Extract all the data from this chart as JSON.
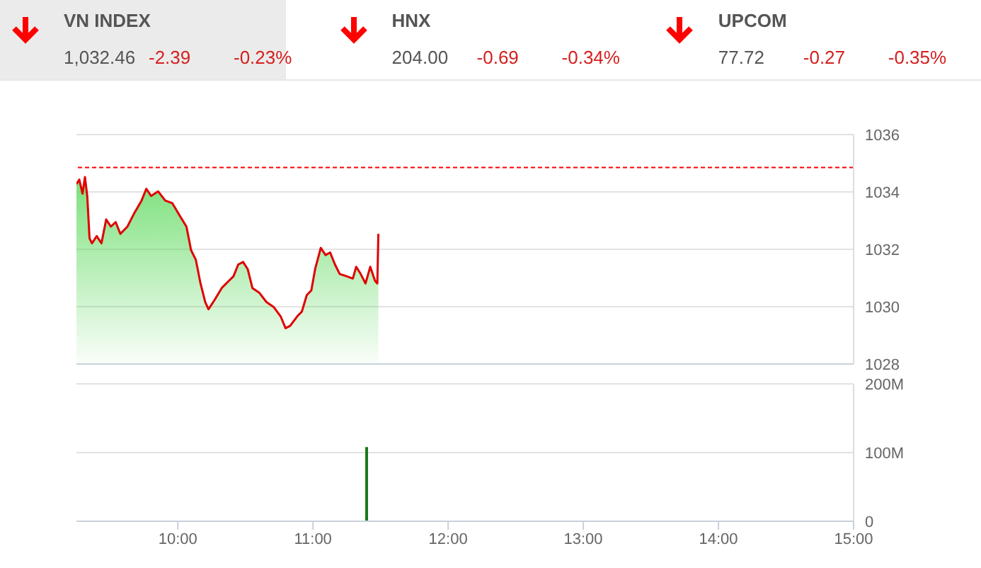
{
  "chart_data": [
    {
      "type": "other",
      "annotations": [
        "VN INDEX",
        "1,032.46",
        "-2.39",
        "-0.23%",
        "HNX",
        "204.00",
        "-0.69",
        "-0.34%",
        "UPCOM",
        "77.72",
        "-0.27",
        "-0.35%"
      ]
    },
    {
      "type": "area",
      "x": [
        9.25,
        9.271,
        9.295,
        9.313,
        9.33,
        9.347,
        9.365,
        9.4,
        9.435,
        9.47,
        9.505,
        9.54,
        9.575,
        9.627,
        9.68,
        9.732,
        9.767,
        9.802,
        9.854,
        9.907,
        9.959,
        10.011,
        10.064,
        10.098,
        10.133,
        10.168,
        10.203,
        10.227,
        10.273,
        10.325,
        10.378,
        10.412,
        10.447,
        10.483,
        10.517,
        10.552,
        10.604,
        10.656,
        10.709,
        10.761,
        10.797,
        10.831,
        10.883,
        10.918,
        10.954,
        10.988,
        11.016,
        11.058,
        11.093,
        11.127,
        11.163,
        11.198,
        11.25,
        11.295,
        11.32,
        11.353,
        11.389,
        11.424,
        11.459,
        11.476,
        11.484
      ],
      "series": [
        {
          "color": "#e00000",
          "values": [
            1034.27,
            1034.43,
            1033.94,
            1034.52,
            1033.86,
            1032.38,
            1032.21,
            1032.46,
            1032.21,
            1033.04,
            1032.79,
            1032.95,
            1032.54,
            1032.79,
            1033.28,
            1033.7,
            1034.11,
            1033.86,
            1034.02,
            1033.7,
            1033.61,
            1033.2,
            1032.79,
            1031.97,
            1031.64,
            1030.81,
            1030.16,
            1029.91,
            1030.24,
            1030.65,
            1030.9,
            1031.06,
            1031.47,
            1031.56,
            1031.31,
            1030.65,
            1030.48,
            1030.16,
            1029.99,
            1029.66,
            1029.25,
            1029.33,
            1029.66,
            1029.83,
            1030.4,
            1030.57,
            1031.31,
            1032.05,
            1031.8,
            1031.89,
            1031.47,
            1031.14,
            1031.06,
            1030.98,
            1031.39,
            1031.14,
            1030.81,
            1031.39,
            1030.9,
            1030.81,
            1032.54
          ]
        }
      ],
      "xlim": [
        9.25,
        15
      ],
      "ylim": [
        1028,
        1036
      ],
      "yticks": [
        1028,
        1030,
        1032,
        1034,
        1036
      ],
      "grid": "y",
      "tick_labels": "y",
      "ref_lines": [
        {
          "axis": "y",
          "value": 1034.85,
          "color": "#ff0000",
          "line_style": "dashed"
        }
      ]
    },
    {
      "type": "bar",
      "x": [
        11.397
      ],
      "series": [
        {
          "color": "#1a7a1a",
          "values": [
            108
          ]
        }
      ],
      "xlim": [
        9.25,
        15
      ],
      "xticks": [
        {
          "value": 10,
          "label": "10:00"
        },
        {
          "value": 11,
          "label": "11:00"
        },
        {
          "value": 12,
          "label": "12:00"
        },
        {
          "value": 13,
          "label": "13:00"
        },
        {
          "value": 14,
          "label": "14:00"
        },
        {
          "value": 15,
          "label": "15:00"
        }
      ],
      "ylim": [
        0,
        200
      ],
      "yticks": [
        {
          "value": 0,
          "label": "0"
        },
        {
          "value": 100,
          "label": "100M"
        },
        {
          "value": 200,
          "label": "200M"
        }
      ],
      "grid": "y"
    }
  ]
}
